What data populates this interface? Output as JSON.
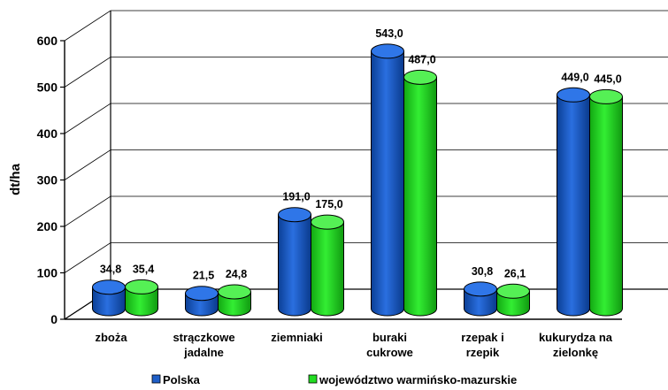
{
  "chart_data": {
    "type": "bar",
    "ylabel": "dt/ha",
    "ylim": [
      0,
      600
    ],
    "yticks": [
      "0",
      "100",
      "200",
      "300",
      "400",
      "500",
      "600"
    ],
    "grid": true,
    "legend_position": "bottom",
    "categories": [
      [
        "zboża"
      ],
      [
        "strączkowe",
        "jadalne"
      ],
      [
        "ziemniaki"
      ],
      [
        "buraki",
        "cukrowe"
      ],
      [
        "rzepak i",
        "rzepik"
      ],
      [
        "kukurydza na",
        "zielonkę"
      ]
    ],
    "series": [
      {
        "name": "Polska",
        "color": "#1f5fc8",
        "values": [
          34.8,
          21.5,
          191.0,
          543.0,
          30.8,
          449.0
        ],
        "labels": [
          "34,8",
          "21,5",
          "191,0",
          "543,0",
          "30,8",
          "449,0"
        ]
      },
      {
        "name": "województwo warmińsko-mazurskie",
        "color": "#22dd22",
        "values": [
          35.4,
          24.8,
          175.0,
          487.0,
          26.1,
          445.0
        ],
        "labels": [
          "35,4",
          "24,8",
          "175,0",
          "487,0",
          "26,1",
          "445,0"
        ]
      }
    ]
  }
}
